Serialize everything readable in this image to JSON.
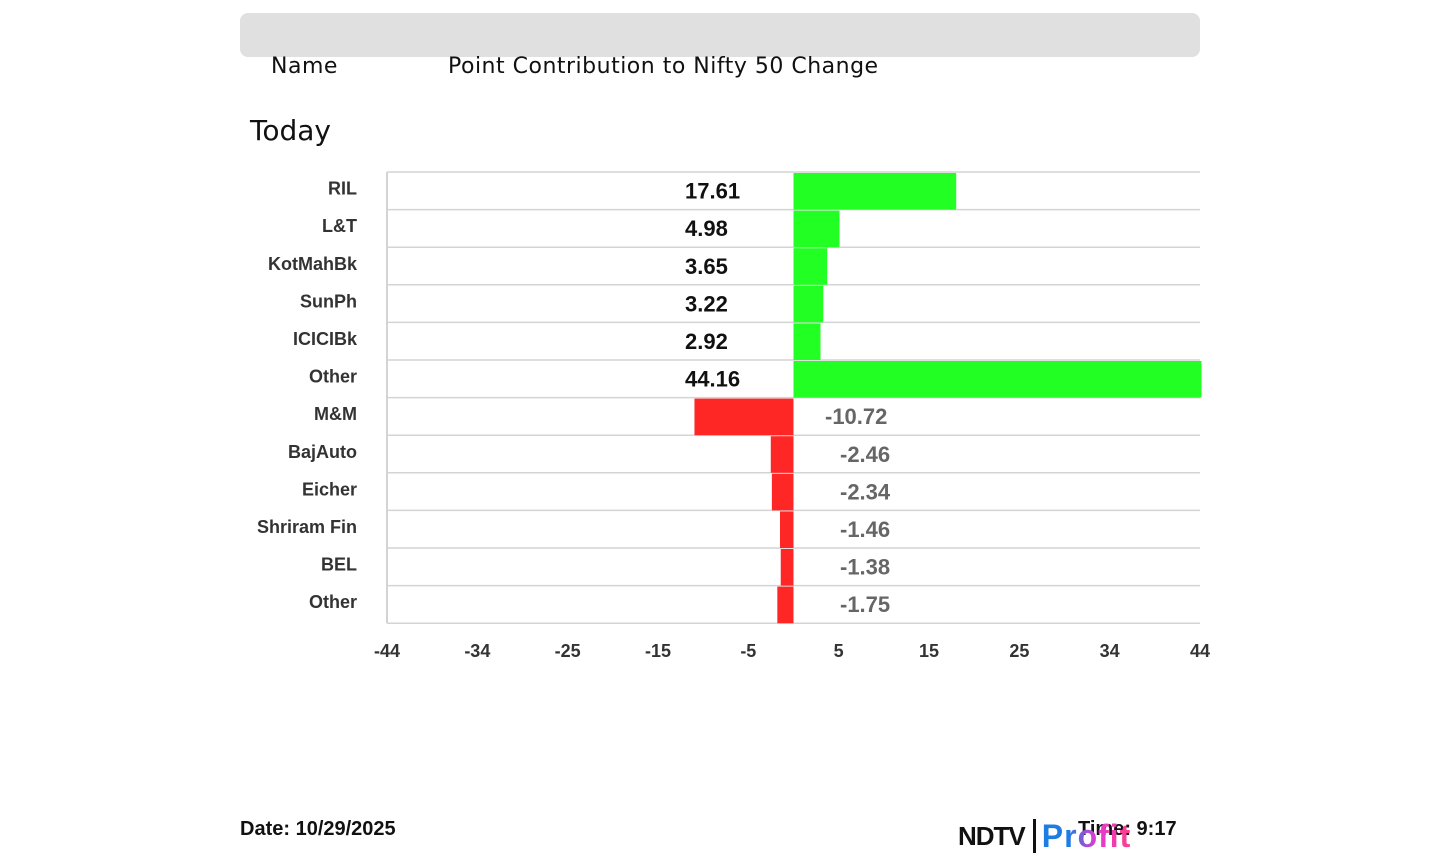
{
  "header": {
    "name_label": "Name",
    "metric_label": "Point Contribution to Nifty 50 Change"
  },
  "subtitle": "Today",
  "colors": {
    "positive": "#22ff22",
    "negative": "#ff2626",
    "header_bar": "#e0e0e0",
    "gridline": "#d4d4d4"
  },
  "chart_data": {
    "type": "bar",
    "orientation": "horizontal",
    "categories": [
      "RIL",
      "L&T",
      "KotMahBk",
      "SunPh",
      "ICICIBk",
      "Other",
      "M&M",
      "BajAuto",
      "Eicher",
      "Shriram Fin",
      "BEL",
      "Other"
    ],
    "values": [
      17.61,
      4.98,
      3.65,
      3.22,
      2.92,
      44.16,
      -10.72,
      -2.46,
      -2.34,
      -1.46,
      -1.38,
      -1.75
    ],
    "value_labels": [
      "17.61",
      "4.98",
      "3.65",
      "3.22",
      "2.92",
      "44.16",
      "-10.72",
      "-2.46",
      "-2.34",
      "-1.46",
      "-1.38",
      "-1.75"
    ],
    "xlim": [
      -44,
      44
    ],
    "xticks": [
      "-44",
      "-34",
      "-25",
      "-15",
      "-5",
      "5",
      "15",
      "25",
      "34",
      "44"
    ],
    "grid": true
  },
  "footer": {
    "date": "Date: 10/29/2025",
    "time": "Time: 9:17",
    "logo_left": "NDTV",
    "logo_right": "Profit"
  }
}
